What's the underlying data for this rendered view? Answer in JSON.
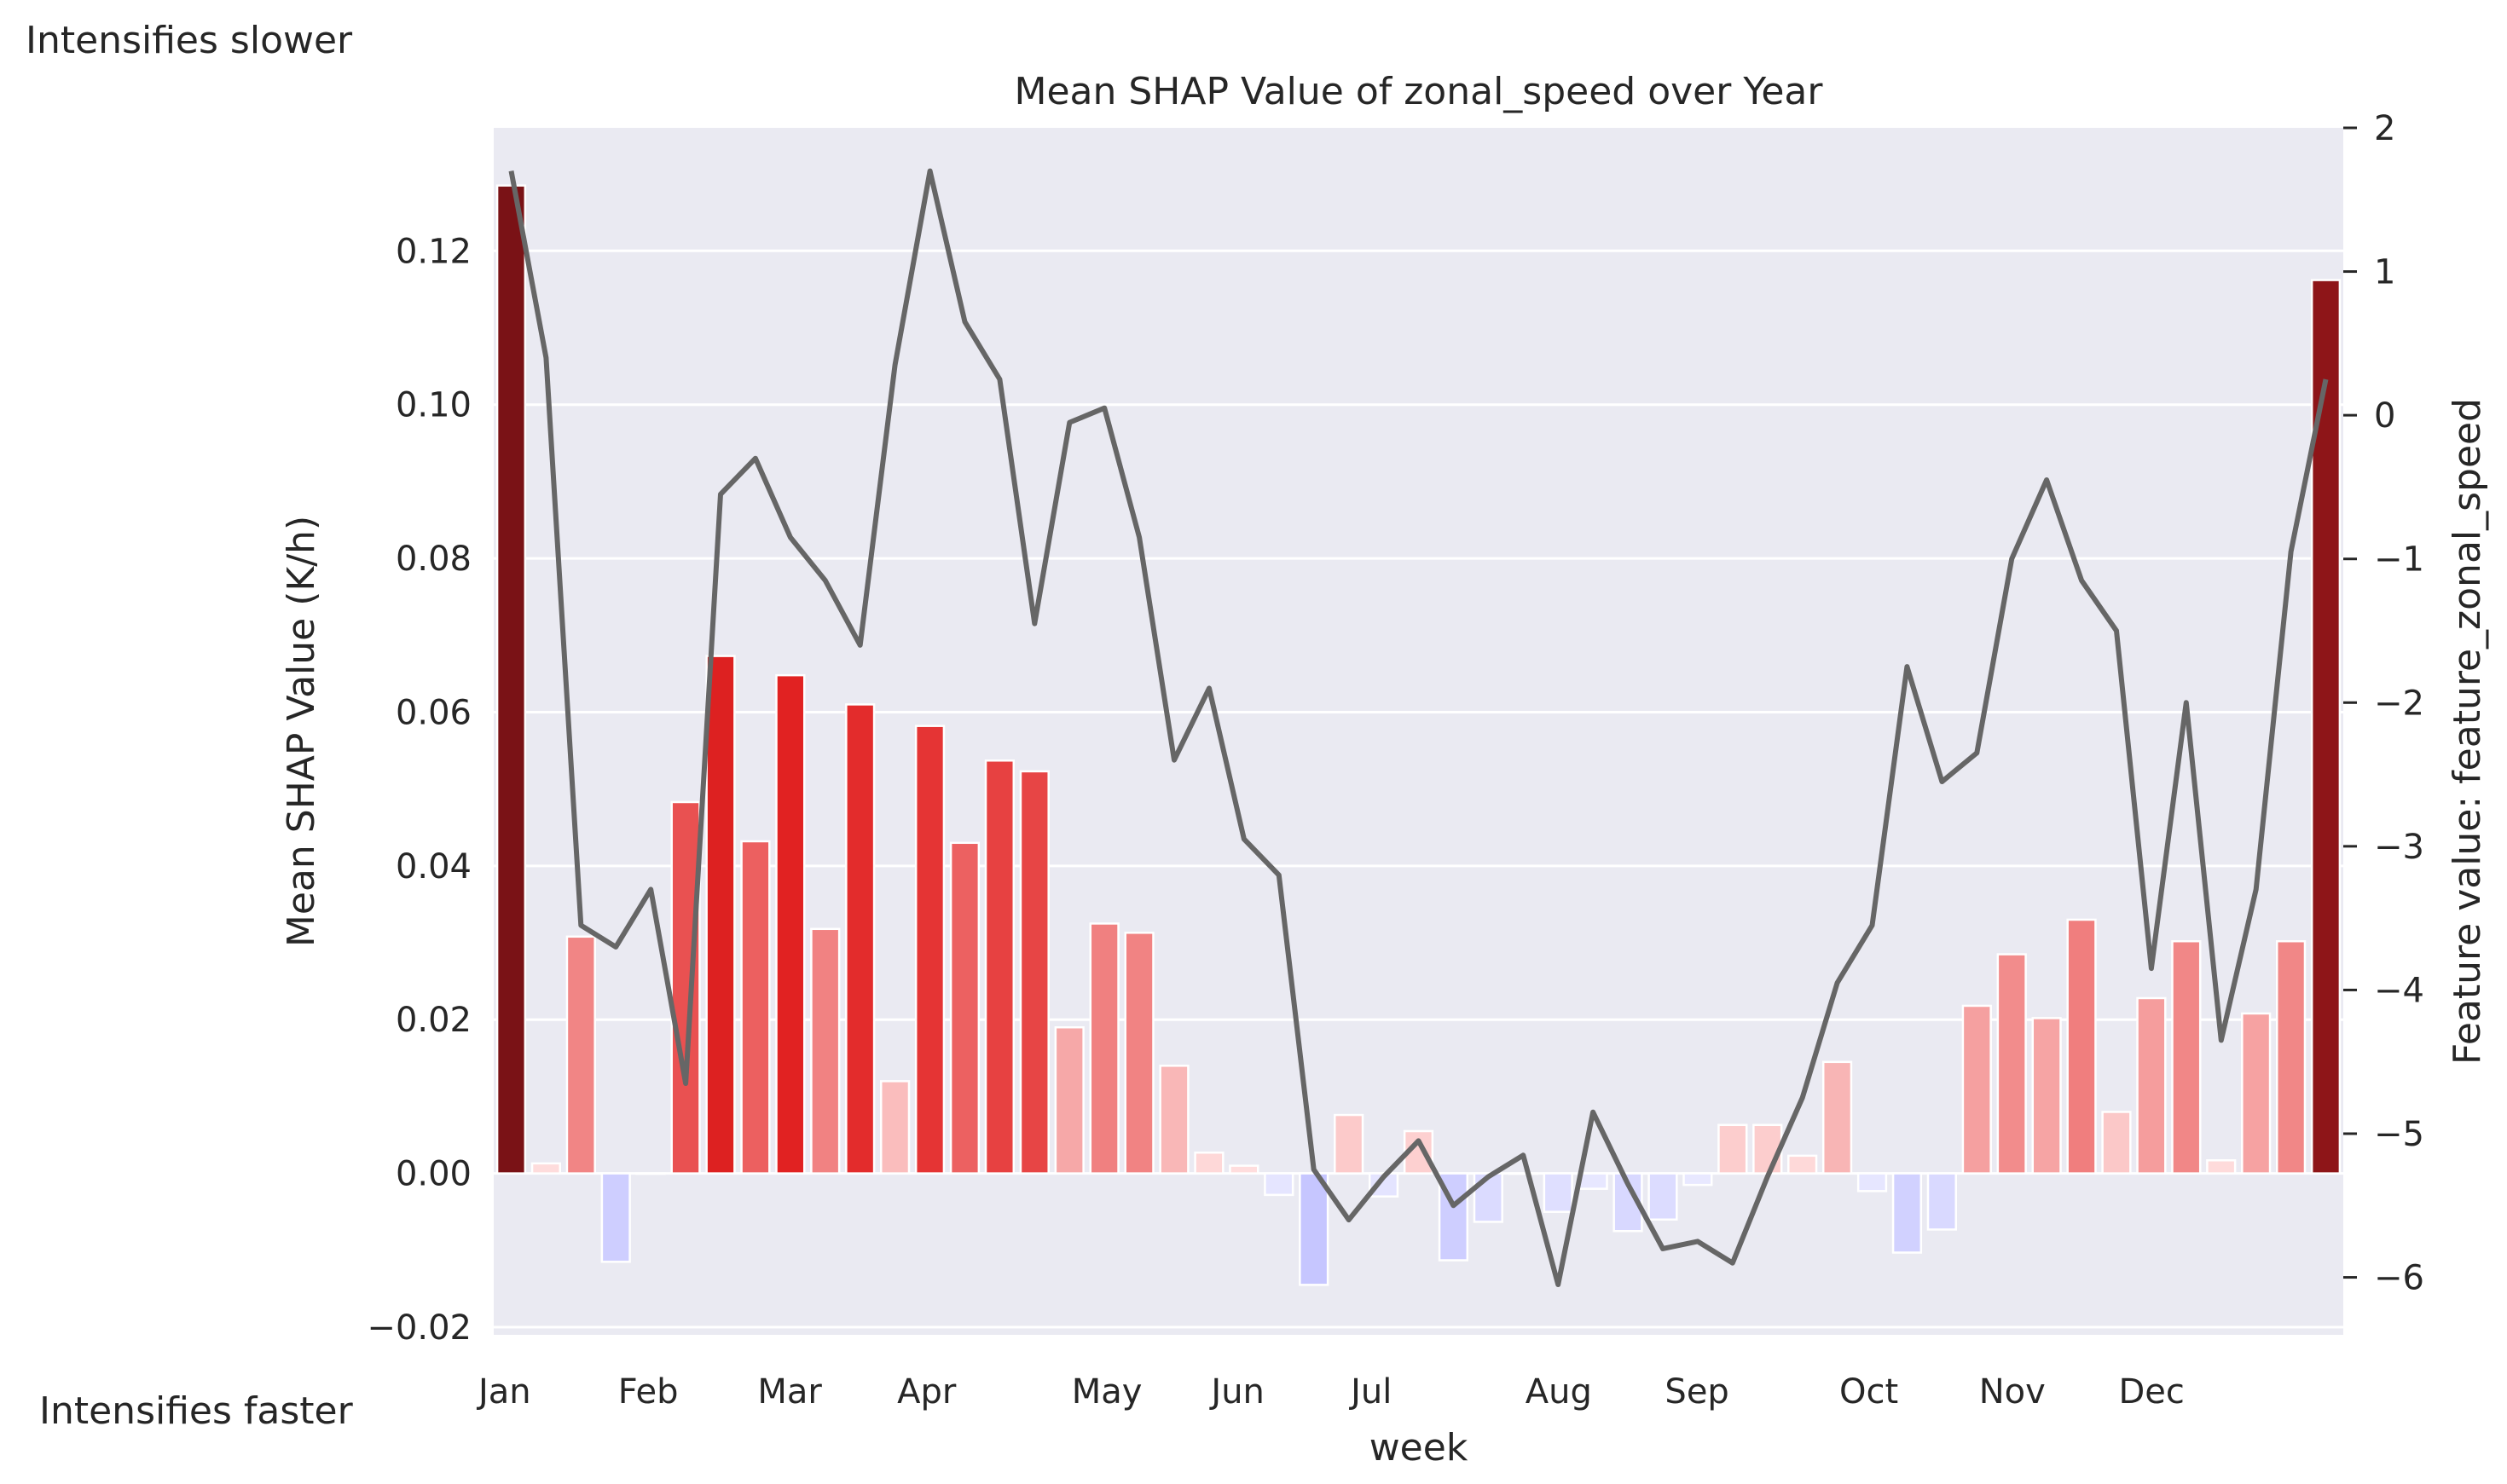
{
  "annotations": {
    "top": "Intensifies slower",
    "bottom": "Intensifies faster"
  },
  "chart_data": {
    "type": "bar",
    "title": "Mean SHAP Value of zonal_speed over Year",
    "xlabel": "week",
    "ylabel": "Mean SHAP Value (K/h)",
    "y2label": "Feature value: feature_zonal_speed",
    "ylim": [
      -0.021,
      0.136
    ],
    "y2lim": [
      -6.4,
      2.0
    ],
    "yticks": [
      -0.02,
      0.0,
      0.02,
      0.04,
      0.06,
      0.08,
      0.1,
      0.12
    ],
    "ytick_labels": [
      "−0.02",
      "0.00",
      "0.02",
      "0.04",
      "0.06",
      "0.08",
      "0.10",
      "0.12"
    ],
    "y2ticks": [
      -6,
      -5,
      -4,
      -3,
      -2,
      -1,
      0,
      1,
      2
    ],
    "y2tick_labels": [
      "−6",
      "−5",
      "−4",
      "−3",
      "−2",
      "−1",
      "0",
      "1",
      "2"
    ],
    "grid": true,
    "month_ticks": [
      {
        "label": "Jan",
        "week": 0
      },
      {
        "label": "Feb",
        "week": 4
      },
      {
        "label": "Mar",
        "week": 8
      },
      {
        "label": "Apr",
        "week": 12
      },
      {
        "label": "May",
        "week": 17
      },
      {
        "label": "Jun",
        "week": 21
      },
      {
        "label": "Jul",
        "week": 25
      },
      {
        "label": "Aug",
        "week": 30
      },
      {
        "label": "Sep",
        "week": 34
      },
      {
        "label": "Oct",
        "week": 39
      },
      {
        "label": "Nov",
        "week": 43
      },
      {
        "label": "Dec",
        "week": 47
      }
    ],
    "series": [
      {
        "type": "bar",
        "values": [
          0.1285,
          0.0013,
          0.0308,
          -0.0115,
          0.0,
          0.0483,
          0.0673,
          0.0432,
          0.0648,
          0.0318,
          0.061,
          0.012,
          0.0582,
          0.043,
          0.0537,
          0.0523,
          0.019,
          0.0325,
          0.0313,
          0.014,
          0.0027,
          0.001,
          -0.0028,
          -0.0145,
          0.0076,
          -0.003,
          0.0055,
          -0.0113,
          -0.0063,
          0.0,
          -0.005,
          -0.002,
          -0.0075,
          -0.006,
          -0.0015,
          0.0063,
          0.0063,
          0.0023,
          0.0145,
          -0.0023,
          -0.0103,
          -0.0073,
          0.0218,
          0.0285,
          0.0202,
          0.033,
          0.008,
          0.0228,
          0.0302,
          0.0017,
          0.0208,
          0.0302,
          0.1162
        ]
      },
      {
        "type": "line",
        "color": "#666666",
        "values": [
          1.7,
          0.4,
          -3.55,
          -3.7,
          -3.3,
          -4.65,
          -0.55,
          -0.3,
          -0.85,
          -1.15,
          -1.6,
          0.35,
          1.7,
          0.65,
          0.25,
          -1.45,
          -0.05,
          0.05,
          -0.85,
          -2.4,
          -1.9,
          -2.95,
          -3.2,
          -5.25,
          -5.6,
          -5.3,
          -5.05,
          -5.5,
          -5.3,
          -5.15,
          -6.05,
          -4.85,
          -5.35,
          -5.8,
          -5.75,
          -5.9,
          -5.3,
          -4.75,
          -3.95,
          -3.55,
          -1.75,
          -2.55,
          -2.35,
          -1.0,
          -0.45,
          -1.15,
          -1.5,
          -3.85,
          -2.0,
          -4.35,
          -3.3,
          -0.95,
          0.25
        ]
      }
    ]
  }
}
